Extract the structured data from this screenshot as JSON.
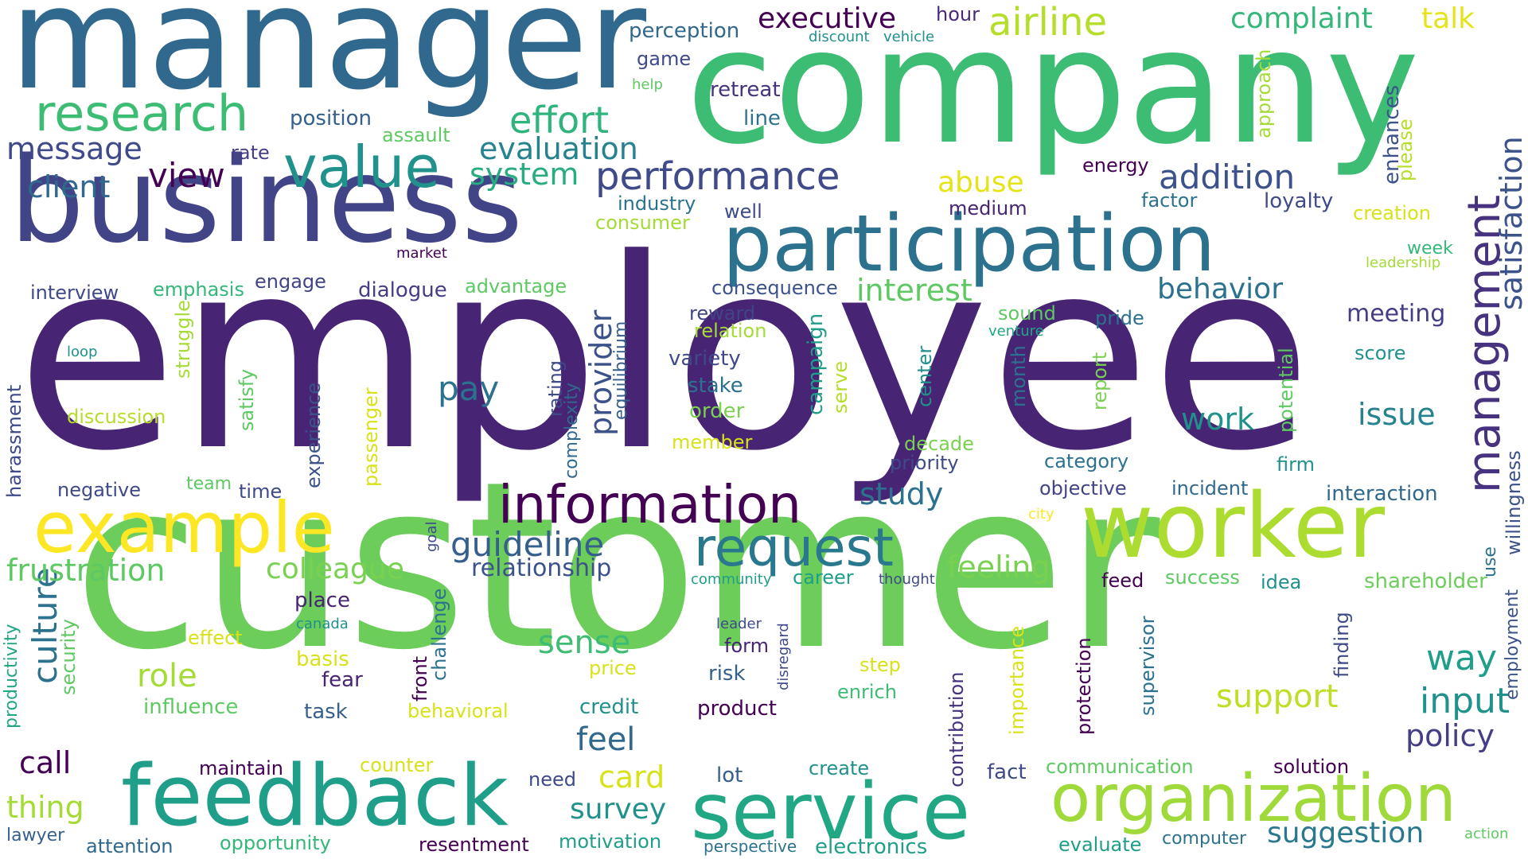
{
  "palette": {
    "dark_purple": "#440154",
    "indigo": "#482475",
    "purple_blue": "#414487",
    "slate_blue": "#355f8d",
    "blue": "#2c728e",
    "teal_blue": "#21918c",
    "teal": "#1f9e89",
    "green_teal": "#27ad81",
    "green": "#3dbc74",
    "light_green": "#5ec962",
    "lime": "#7ad151",
    "yellow_green": "#addc30",
    "yellow": "#e5e419",
    "bright_yellow": "#fde725"
  },
  "words": [
    {
      "text": "employee",
      "color": "#482475"
    },
    {
      "text": "customer",
      "color": "#6ccd5a"
    },
    {
      "text": "company",
      "color": "#3dbc74"
    },
    {
      "text": "manager",
      "color": "#31688e"
    },
    {
      "text": "business",
      "color": "#414487"
    },
    {
      "text": "participation",
      "color": "#2c728e"
    },
    {
      "text": "worker",
      "color": "#addc30"
    },
    {
      "text": "feedback",
      "color": "#1f9e89"
    },
    {
      "text": "service",
      "color": "#22a785"
    },
    {
      "text": "organization",
      "color": "#9fda3a"
    },
    {
      "text": "example",
      "color": "#fde725"
    },
    {
      "text": "information",
      "color": "#440154"
    },
    {
      "text": "request",
      "color": "#2a788e"
    },
    {
      "text": "value",
      "color": "#21918c"
    },
    {
      "text": "research",
      "color": "#3dbc74"
    },
    {
      "text": "management",
      "color": "#46327e"
    },
    {
      "text": "satisfaction",
      "color": "#3b528b"
    },
    {
      "text": "performance",
      "color": "#3e4a89"
    },
    {
      "text": "airline",
      "color": "#b5de2b"
    },
    {
      "text": "executive",
      "color": "#440154"
    },
    {
      "text": "complaint",
      "color": "#35b779"
    },
    {
      "text": "talk",
      "color": "#e5e419"
    },
    {
      "text": "effort",
      "color": "#2fb47c"
    },
    {
      "text": "evaluation",
      "color": "#26828e"
    },
    {
      "text": "system",
      "color": "#27ad81"
    },
    {
      "text": "view",
      "color": "#440154"
    },
    {
      "text": "message",
      "color": "#3e4a89"
    },
    {
      "text": "client",
      "color": "#31688e"
    },
    {
      "text": "addition",
      "color": "#3b528b"
    },
    {
      "text": "abuse",
      "color": "#e5e419"
    },
    {
      "text": "interest",
      "color": "#5ec962"
    },
    {
      "text": "behavior",
      "color": "#2c728e"
    },
    {
      "text": "meeting",
      "color": "#433e85"
    },
    {
      "text": "culture",
      "color": "#2c728e"
    },
    {
      "text": "provider",
      "color": "#3b528b"
    },
    {
      "text": "guideline",
      "color": "#355f8d"
    },
    {
      "text": "relationship",
      "color": "#3b528b"
    },
    {
      "text": "frustration",
      "color": "#5ec962"
    },
    {
      "text": "colleague",
      "color": "#7ad151"
    },
    {
      "text": "feeling",
      "color": "#7ad151"
    },
    {
      "text": "study",
      "color": "#2c728e"
    },
    {
      "text": "work",
      "color": "#21918c"
    },
    {
      "text": "issue",
      "color": "#26828e"
    },
    {
      "text": "pay",
      "color": "#2c728e"
    },
    {
      "text": "sense",
      "color": "#3dbc74"
    },
    {
      "text": "role",
      "color": "#a5db36"
    },
    {
      "text": "way",
      "color": "#1f9e89"
    },
    {
      "text": "input",
      "color": "#21918c"
    },
    {
      "text": "policy",
      "color": "#433e85"
    },
    {
      "text": "support",
      "color": "#bddf26"
    },
    {
      "text": "feel",
      "color": "#31688e"
    },
    {
      "text": "call",
      "color": "#440154"
    },
    {
      "text": "thing",
      "color": "#a5db36"
    },
    {
      "text": "card",
      "color": "#d8e219"
    },
    {
      "text": "survey",
      "color": "#21918c"
    },
    {
      "text": "suggestion",
      "color": "#2a788e"
    },
    {
      "text": "interaction",
      "color": "#31688e"
    },
    {
      "text": "shareholder",
      "color": "#6ccd5a"
    },
    {
      "text": "willingness",
      "color": "#3b528b"
    },
    {
      "text": "employment",
      "color": "#3b528b"
    },
    {
      "text": "enhances",
      "color": "#3b528b"
    },
    {
      "text": "please",
      "color": "#b5de2b"
    },
    {
      "text": "approach",
      "color": "#a5db36"
    },
    {
      "text": "perception",
      "color": "#31688e"
    },
    {
      "text": "hour",
      "color": "#482878"
    },
    {
      "text": "discount",
      "color": "#21918c"
    },
    {
      "text": "vehicle",
      "color": "#21918c"
    },
    {
      "text": "game",
      "color": "#3e4a89"
    },
    {
      "text": "help",
      "color": "#5ec962"
    },
    {
      "text": "retreat",
      "color": "#46327e"
    },
    {
      "text": "line",
      "color": "#2c728e"
    },
    {
      "text": "position",
      "color": "#355f8d"
    },
    {
      "text": "assault",
      "color": "#5ec962"
    },
    {
      "text": "rate",
      "color": "#433e85"
    },
    {
      "text": "energy",
      "color": "#440154"
    },
    {
      "text": "factor",
      "color": "#2c728e"
    },
    {
      "text": "loyalty",
      "color": "#3e4a89"
    },
    {
      "text": "creation",
      "color": "#d8e219"
    },
    {
      "text": "industry",
      "color": "#2c728e"
    },
    {
      "text": "well",
      "color": "#3e4a89"
    },
    {
      "text": "medium",
      "color": "#482475"
    },
    {
      "text": "consumer",
      "color": "#a5db36"
    },
    {
      "text": "week",
      "color": "#35b779"
    },
    {
      "text": "leadership",
      "color": "#a5db36"
    },
    {
      "text": "market",
      "color": "#440154"
    },
    {
      "text": "interview",
      "color": "#3e4a89"
    },
    {
      "text": "emphasis",
      "color": "#35b779"
    },
    {
      "text": "engage",
      "color": "#414487"
    },
    {
      "text": "dialogue",
      "color": "#433e85"
    },
    {
      "text": "advantage",
      "color": "#5ec962"
    },
    {
      "text": "consequence",
      "color": "#3b528b"
    },
    {
      "text": "pride",
      "color": "#2c728e"
    },
    {
      "text": "reward",
      "color": "#414487"
    },
    {
      "text": "relation",
      "color": "#a5db36"
    },
    {
      "text": "sound",
      "color": "#5ec962"
    },
    {
      "text": "venture",
      "color": "#22a785"
    },
    {
      "text": "loop",
      "color": "#21918c"
    },
    {
      "text": "struggle",
      "color": "#a5db36"
    },
    {
      "text": "harassment",
      "color": "#3e4a89"
    },
    {
      "text": "satisfy",
      "color": "#5ec962"
    },
    {
      "text": "experience",
      "color": "#3b528b"
    },
    {
      "text": "passenger",
      "color": "#d8e219"
    },
    {
      "text": "rating",
      "color": "#3e4a89"
    },
    {
      "text": "complexity",
      "color": "#31688e"
    },
    {
      "text": "equilibrium",
      "color": "#355f8d"
    },
    {
      "text": "variety",
      "color": "#3e4a89"
    },
    {
      "text": "stake",
      "color": "#2c728e"
    },
    {
      "text": "order",
      "color": "#7ad151"
    },
    {
      "text": "member",
      "color": "#d8e219"
    },
    {
      "text": "campaign",
      "color": "#1f9e89"
    },
    {
      "text": "serve",
      "color": "#b5de2b"
    },
    {
      "text": "center",
      "color": "#21918c"
    },
    {
      "text": "month",
      "color": "#2c728e"
    },
    {
      "text": "decade",
      "color": "#7ad151"
    },
    {
      "text": "priority",
      "color": "#3e4a89"
    },
    {
      "text": "report",
      "color": "#7ad151"
    },
    {
      "text": "category",
      "color": "#2c728e"
    },
    {
      "text": "objective",
      "color": "#414487"
    },
    {
      "text": "incident",
      "color": "#31688e"
    },
    {
      "text": "potential",
      "color": "#5ec962"
    },
    {
      "text": "score",
      "color": "#21918c"
    },
    {
      "text": "firm",
      "color": "#21918c"
    },
    {
      "text": "use",
      "color": "#2c728e"
    },
    {
      "text": "discussion",
      "color": "#b5de2b"
    },
    {
      "text": "negative",
      "color": "#3e4a89"
    },
    {
      "text": "team",
      "color": "#5ec962"
    },
    {
      "text": "time",
      "color": "#3e4a89"
    },
    {
      "text": "goal",
      "color": "#3e4a89"
    },
    {
      "text": "city",
      "color": "#fde725"
    },
    {
      "text": "place",
      "color": "#482475"
    },
    {
      "text": "canada",
      "color": "#21918c"
    },
    {
      "text": "security",
      "color": "#5ec962"
    },
    {
      "text": "productivity",
      "color": "#22a785"
    },
    {
      "text": "effect",
      "color": "#d8e219"
    },
    {
      "text": "basis",
      "color": "#d8e219"
    },
    {
      "text": "fear",
      "color": "#482475"
    },
    {
      "text": "influence",
      "color": "#5ec962"
    },
    {
      "text": "task",
      "color": "#355f8d"
    },
    {
      "text": "maintain",
      "color": "#440154"
    },
    {
      "text": "attention",
      "color": "#31688e"
    },
    {
      "text": "opportunity",
      "color": "#35b779"
    },
    {
      "text": "lawyer",
      "color": "#355f8d"
    },
    {
      "text": "challenge",
      "color": "#2c728e"
    },
    {
      "text": "front",
      "color": "#440154"
    },
    {
      "text": "behavioral",
      "color": "#d8e219"
    },
    {
      "text": "counter",
      "color": "#d8e219"
    },
    {
      "text": "need",
      "color": "#3e4a89"
    },
    {
      "text": "resentment",
      "color": "#440154"
    },
    {
      "text": "motivation",
      "color": "#1f9e89"
    },
    {
      "text": "perspective",
      "color": "#2c728e"
    },
    {
      "text": "electronics",
      "color": "#1f9e89"
    },
    {
      "text": "price",
      "color": "#d8e219"
    },
    {
      "text": "credit",
      "color": "#21918c"
    },
    {
      "text": "leader",
      "color": "#3e4a89"
    },
    {
      "text": "form",
      "color": "#482475"
    },
    {
      "text": "risk",
      "color": "#355f8d"
    },
    {
      "text": "disregard",
      "color": "#3e4a89"
    },
    {
      "text": "product",
      "color": "#440154"
    },
    {
      "text": "lot",
      "color": "#355f8d"
    },
    {
      "text": "create",
      "color": "#21918c"
    },
    {
      "text": "step",
      "color": "#d8e219"
    },
    {
      "text": "enrich",
      "color": "#3dbc74"
    },
    {
      "text": "contribution",
      "color": "#46327e"
    },
    {
      "text": "importance",
      "color": "#d8e219"
    },
    {
      "text": "protection",
      "color": "#440154"
    },
    {
      "text": "fact",
      "color": "#3e4a89"
    },
    {
      "text": "communication",
      "color": "#5ec962"
    },
    {
      "text": "solution",
      "color": "#440154"
    },
    {
      "text": "evaluate",
      "color": "#1f9e89"
    },
    {
      "text": "computer",
      "color": "#2c728e"
    },
    {
      "text": "action",
      "color": "#5ec962"
    },
    {
      "text": "supervisor",
      "color": "#2c728e"
    },
    {
      "text": "finding",
      "color": "#3e4a89"
    },
    {
      "text": "feed",
      "color": "#440154"
    },
    {
      "text": "success",
      "color": "#5ec962"
    },
    {
      "text": "idea",
      "color": "#21918c"
    },
    {
      "text": "community",
      "color": "#1f9e89"
    },
    {
      "text": "career",
      "color": "#1f9e89"
    },
    {
      "text": "thought",
      "color": "#3e4a89"
    }
  ]
}
